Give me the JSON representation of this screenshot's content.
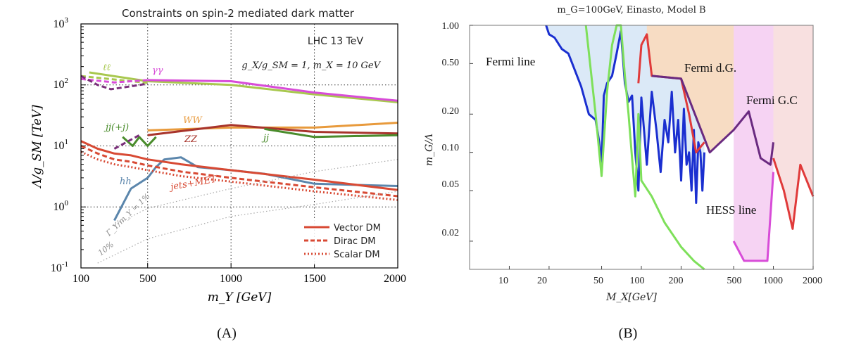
{
  "chart_data": [
    {
      "type": "line",
      "panel_label": "(A)",
      "title": "Constraints on spin-2 mediated dark matter",
      "xlabel": "m_Y [GeV]",
      "ylabel": "Λ/g_SM [TeV]",
      "xscale": "linear",
      "yscale": "log",
      "xlim": [
        100,
        2000
      ],
      "ylim": [
        0.1,
        1000
      ],
      "grid": "dotted at x=500,1000,1500 and y=1,10,100",
      "xticks": [
        "100",
        "500",
        "1000",
        "1500",
        "2000"
      ],
      "yticks": [
        {
          "base": "10",
          "exp": "-1"
        },
        {
          "base": "10",
          "exp": "0"
        },
        {
          "base": "10",
          "exp": "1"
        },
        {
          "base": "10",
          "exp": "2"
        },
        {
          "base": "10",
          "exp": "3"
        }
      ],
      "annotations": {
        "experiment": "LHC 13 TeV",
        "couplings": "g_X/g_SM = 1,  m_X = 10 GeV",
        "width_1pct": "Γ_Y/m_Y = 1%",
        "width_10pct": "10%"
      },
      "legend": {
        "position": "bottom-right",
        "entries": [
          "Vector DM",
          "Dirac DM",
          "Scalar DM"
        ]
      },
      "series": [
        {
          "name": "ℓℓ",
          "color": "#a8c84e",
          "style": "solid",
          "x": [
            150,
            500,
            1000,
            1500,
            2000
          ],
          "y": [
            160,
            115,
            100,
            70,
            52
          ]
        },
        {
          "name": "ℓℓ (dashed)",
          "color": "#a8c84e",
          "style": "dashed",
          "x": [
            100,
            500
          ],
          "y": [
            140,
            108
          ]
        },
        {
          "name": "γγ",
          "color": "#d84cd8",
          "style": "solid",
          "x": [
            500,
            1000,
            1500,
            2000
          ],
          "y": [
            120,
            115,
            75,
            55
          ]
        },
        {
          "name": "γγ (dashed)",
          "color": "#d84cd8",
          "style": "dashed",
          "x": [
            100,
            300,
            500
          ],
          "y": [
            125,
            110,
            120
          ]
        },
        {
          "name": "dark-purple dashed",
          "color": "#7a2e7a",
          "style": "dashed",
          "x": [
            100,
            200,
            280,
            400,
            500
          ],
          "y": [
            140,
            100,
            85,
            95,
            105
          ]
        },
        {
          "name": "WW",
          "color": "#e89a3c",
          "style": "solid",
          "x": [
            500,
            1000,
            1500,
            2000
          ],
          "y": [
            18,
            20,
            20,
            24
          ]
        },
        {
          "name": "ZZ",
          "color": "#a8342c",
          "style": "solid",
          "x": [
            500,
            1000,
            1500,
            2000
          ],
          "y": [
            15,
            22,
            17,
            16
          ]
        },
        {
          "name": "jj(+j)",
          "color": "#4a8c2c",
          "style": "solid",
          "x": [
            350,
            410,
            450,
            500,
            550
          ],
          "y": [
            14,
            10,
            14,
            10,
            14
          ]
        },
        {
          "name": "jj(+j) (dashed)",
          "color": "#7a2e7a",
          "style": "dashed",
          "x": [
            300,
            450
          ],
          "y": [
            9,
            15
          ]
        },
        {
          "name": "jj",
          "color": "#4a8c2c",
          "style": "solid",
          "x": [
            1200,
            1500,
            2000
          ],
          "y": [
            19,
            14,
            15
          ]
        },
        {
          "name": "hh",
          "color": "#5b86ac",
          "style": "solid",
          "x": [
            300,
            400,
            500,
            550,
            600,
            700,
            800,
            1000,
            1200,
            1500,
            2000
          ],
          "y": [
            0.6,
            2.0,
            3.0,
            4.5,
            6.0,
            6.5,
            4.5,
            4.0,
            3.5,
            2.4,
            2.2
          ]
        },
        {
          "name": "Vector DM (jets+MET)",
          "color": "#d84a34",
          "style": "solid",
          "x": [
            100,
            200,
            300,
            400,
            500,
            700,
            1000,
            1500,
            2000
          ],
          "y": [
            12,
            9,
            7.5,
            7,
            6,
            5,
            4,
            2.8,
            1.9
          ]
        },
        {
          "name": "Dirac DM (jets+MET)",
          "color": "#d84a34",
          "style": "dashed",
          "x": [
            100,
            200,
            300,
            400,
            500,
            700,
            1000,
            1500,
            2000
          ],
          "y": [
            10,
            7.5,
            6,
            5.5,
            4.8,
            3.8,
            3.0,
            2.1,
            1.5
          ]
        },
        {
          "name": "Scalar DM (jets+MET)",
          "color": "#d84a34",
          "style": "dotted",
          "x": [
            100,
            200,
            300,
            400,
            500,
            700,
            1000,
            1500,
            2000
          ],
          "y": [
            8,
            6,
            5,
            4.5,
            4.0,
            3.2,
            2.6,
            1.8,
            1.3
          ]
        },
        {
          "name": "Γ_Y/m_Y = 1%",
          "color": "#a8a8a8",
          "style": "dotted",
          "x": [
            300,
            500,
            1000,
            1500,
            2000
          ],
          "y": [
            0.5,
            0.95,
            2.0,
            3.8,
            6.0
          ]
        },
        {
          "name": "Γ_Y/m_Y = 10%",
          "color": "#a8a8a8",
          "style": "dotted",
          "x": [
            200,
            500,
            1000,
            1500,
            2000
          ],
          "y": [
            0.12,
            0.3,
            0.7,
            1.1,
            1.8
          ]
        }
      ],
      "series_labels": [
        {
          "text": "ℓℓ",
          "color": "#a8c84e"
        },
        {
          "text": "γγ",
          "color": "#d84cd8"
        },
        {
          "text": "WW",
          "color": "#e89a3c"
        },
        {
          "text": "ZZ",
          "color": "#a8342c"
        },
        {
          "text": "jj(+j)",
          "color": "#4a8c2c"
        },
        {
          "text": "jj",
          "color": "#4a8c2c"
        },
        {
          "text": "hh",
          "color": "#5b86ac"
        },
        {
          "text": "jets+MET",
          "color": "#d84a34"
        }
      ]
    },
    {
      "type": "area",
      "panel_label": "(B)",
      "title": "m_G=100GeV, Einasto, Model B",
      "xlabel": "M_X[GeV]",
      "ylabel": "m_G/Λ",
      "xscale": "log",
      "yscale": "log",
      "xlim": [
        5,
        2000
      ],
      "ylim": [
        0.012,
        1.0
      ],
      "xticks": [
        "10",
        "20",
        "50",
        "100",
        "200",
        "500",
        "1000",
        "2000"
      ],
      "yticks": [
        "1.00",
        "0.50",
        "0.20",
        "0.10",
        "0.05",
        "0.02"
      ],
      "annotations": [
        "Fermi line",
        "Fermi d.G.",
        "Fermi G.C",
        "HESS line"
      ],
      "regions": [
        {
          "name": "Fermi line (excluded)",
          "color": "#dbe9f7"
        },
        {
          "name": "Fermi d.G. (excluded)",
          "color": "#f7dcc3"
        },
        {
          "name": "HESS line (excluded)",
          "color": "#f6d3f3"
        },
        {
          "name": "HESS G.C (excluded)",
          "color": "#f8e0e0"
        }
      ],
      "series": [
        {
          "name": "Fermi line",
          "color": "#1a2fd0",
          "x": [
            19,
            20,
            22,
            25,
            28,
            30,
            35,
            40,
            45,
            48,
            50,
            52,
            55,
            60,
            65,
            70,
            75,
            80,
            85,
            90,
            95,
            100,
            110,
            120,
            130,
            140,
            150,
            160,
            170,
            180,
            190,
            200,
            210,
            220,
            230,
            240,
            250,
            260,
            270,
            280,
            290,
            300
          ],
          "y": [
            1.0,
            0.85,
            0.8,
            0.65,
            0.6,
            0.5,
            0.33,
            0.2,
            0.18,
            0.12,
            0.08,
            0.28,
            0.35,
            0.4,
            0.6,
            0.9,
            0.35,
            0.25,
            0.28,
            0.1,
            0.05,
            0.27,
            0.08,
            0.3,
            0.15,
            0.07,
            0.18,
            0.12,
            0.3,
            0.1,
            0.18,
            0.06,
            0.22,
            0.08,
            0.1,
            0.05,
            0.15,
            0.04,
            0.12,
            0.1,
            0.05,
            0.1
          ]
        },
        {
          "name": "Fermi G.C (green)",
          "color": "#7ee05a",
          "x": [
            38,
            45,
            50,
            55,
            60,
            65,
            70,
            75,
            80,
            85,
            90,
            95,
            100,
            120,
            150,
            200,
            250,
            300
          ],
          "y": [
            1.0,
            0.2,
            0.065,
            0.3,
            0.7,
            1.0,
            1.0,
            0.4,
            0.2,
            0.09,
            0.045,
            0.2,
            0.06,
            0.045,
            0.028,
            0.018,
            0.014,
            0.012
          ]
        },
        {
          "name": "Fermi d.G.",
          "color": "#e03a3a",
          "x": [
            95,
            100,
            110,
            120,
            200,
            230,
            260,
            300
          ],
          "y": [
            0.35,
            0.7,
            0.85,
            0.4,
            0.38,
            0.2,
            0.1,
            0.12
          ]
        },
        {
          "name": "Fermi G.C (purple)",
          "color": "#6a2a80",
          "x": [
            120,
            200,
            330,
            500,
            650,
            800,
            950,
            1000
          ],
          "y": [
            0.4,
            0.38,
            0.1,
            0.15,
            0.21,
            0.09,
            0.08,
            0.12
          ]
        },
        {
          "name": "HESS line",
          "color": "#d84cd8",
          "x": [
            500,
            600,
            900,
            1000
          ],
          "y": [
            0.02,
            0.014,
            0.014,
            0.07
          ]
        },
        {
          "name": "HESS G.C",
          "color": "#e03a3a",
          "x": [
            1000,
            1200,
            1400,
            1600,
            2000
          ],
          "y": [
            0.09,
            0.05,
            0.025,
            0.08,
            0.045
          ]
        }
      ]
    }
  ]
}
